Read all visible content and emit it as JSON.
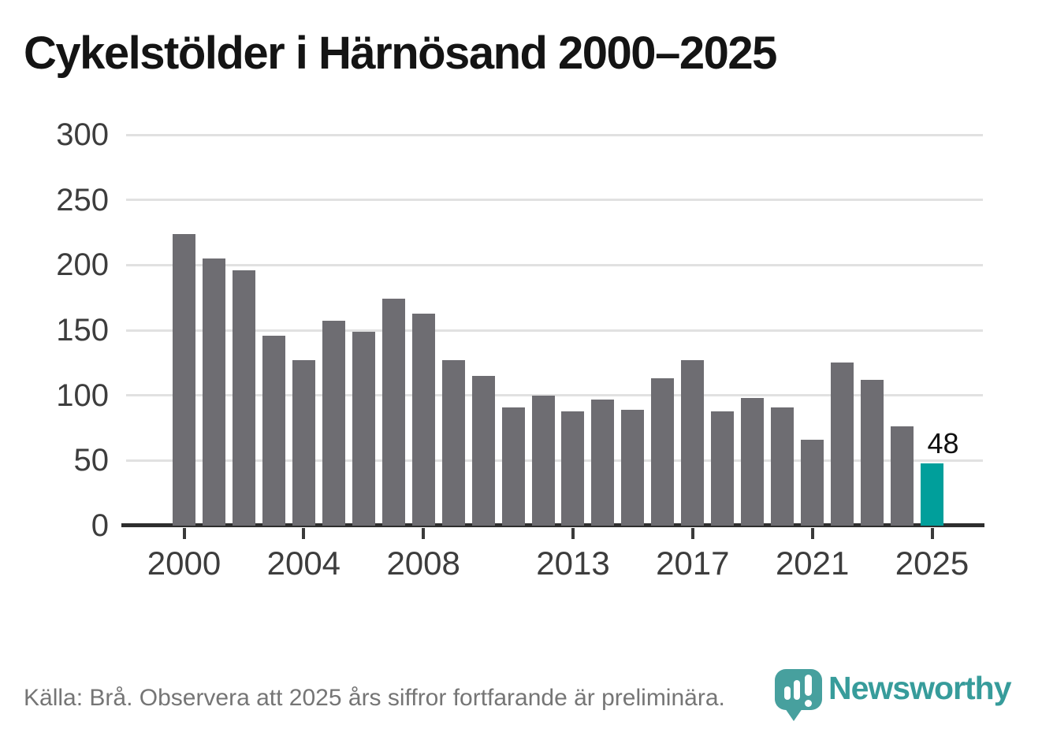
{
  "title": "Cykelstölder i Härnösand 2000–2025",
  "chart_data": {
    "type": "bar",
    "title": "Cykelstölder i Härnösand 2000–2025",
    "categories": [
      2000,
      2001,
      2002,
      2003,
      2004,
      2005,
      2006,
      2007,
      2008,
      2009,
      2010,
      2011,
      2012,
      2013,
      2014,
      2015,
      2016,
      2017,
      2018,
      2019,
      2020,
      2021,
      2022,
      2023,
      2024,
      2025
    ],
    "values": [
      224,
      205,
      196,
      146,
      127,
      157,
      149,
      174,
      163,
      127,
      115,
      91,
      100,
      88,
      97,
      89,
      113,
      127,
      88,
      98,
      91,
      66,
      125,
      112,
      76,
      48
    ],
    "xlabel": "",
    "ylabel": "",
    "ylim": [
      0,
      300
    ],
    "yticks": [
      0,
      50,
      100,
      150,
      200,
      250,
      300
    ],
    "xticks": [
      2000,
      2004,
      2008,
      2013,
      2017,
      2021,
      2025
    ],
    "grid": "horizontal",
    "legend": "none",
    "bar_color": "#6e6d72",
    "highlight": {
      "category": 2025,
      "value": 48,
      "label": "48",
      "color": "#009f9b",
      "note": "preliminary year highlighted in teal with value label"
    }
  },
  "colors": {
    "background": "#ffffff",
    "title_text": "#141414",
    "axis_label_text": "#3d3d3d",
    "gridline": "#e1e1e1",
    "axis_line": "#2e2e2e",
    "bar_gray": "#6e6d72",
    "bar_teal": "#009f9b",
    "source_text": "#757575",
    "brand_teal": "#379c9b",
    "logo_icon_teal": "#47a09e"
  },
  "footer": {
    "source_text": "Källa: Brå. Observera att 2025 års siffror fortfarande är preliminära."
  },
  "logo": {
    "brand": "Newsworthy",
    "icon": "speech-bubble-bar-chart-icon"
  }
}
